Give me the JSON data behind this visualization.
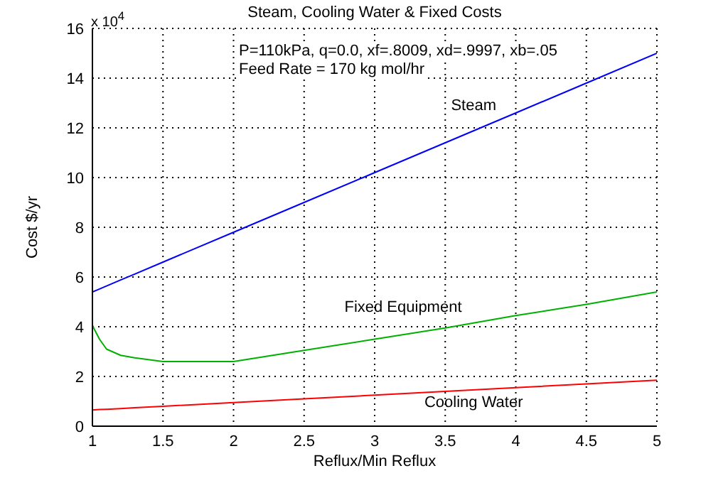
{
  "chart_data": {
    "type": "line",
    "title": "Steam, Cooling Water & Fixed Costs",
    "xlabel": "Reflux/Min Reflux",
    "ylabel": "Cost $/yr",
    "annotations": [
      "x 10$^{4}$",
      "P=110kPa, q=0.0, xf=.8009, xd=.9997, xb=.05",
      "Feed Rate = 170 kg mol/hr"
    ],
    "x": [
      1,
      1.05,
      1.1,
      1.2,
      1.3,
      1.5,
      2,
      2.5,
      3,
      3.5,
      4,
      4.5,
      5
    ],
    "series": [
      {
        "name": "Steam",
        "color": "#0000ff",
        "values": [
          5.4,
          5.52,
          5.64,
          5.88,
          6.12,
          6.6,
          7.8,
          9.0,
          10.2,
          11.4,
          12.6,
          13.8,
          15.0
        ]
      },
      {
        "name": "Fixed Equipment",
        "color": "#00b000",
        "values": [
          4.05,
          3.5,
          3.1,
          2.85,
          2.75,
          2.6,
          2.6,
          3.05,
          3.5,
          3.95,
          4.45,
          4.9,
          5.4
        ]
      },
      {
        "name": "Cooling Water",
        "color": "#ff0000",
        "values": [
          0.65,
          0.67,
          0.68,
          0.71,
          0.74,
          0.8,
          0.95,
          1.1,
          1.25,
          1.4,
          1.55,
          1.7,
          1.85
        ]
      }
    ],
    "xlim": [
      1,
      5
    ],
    "xticks": [
      1,
      1.5,
      2,
      2.5,
      3,
      3.5,
      4,
      4.5,
      5
    ],
    "ylim": [
      0,
      16
    ],
    "yticks": [
      0,
      2,
      4,
      6,
      8,
      10,
      12,
      14,
      16
    ],
    "grid": true
  }
}
